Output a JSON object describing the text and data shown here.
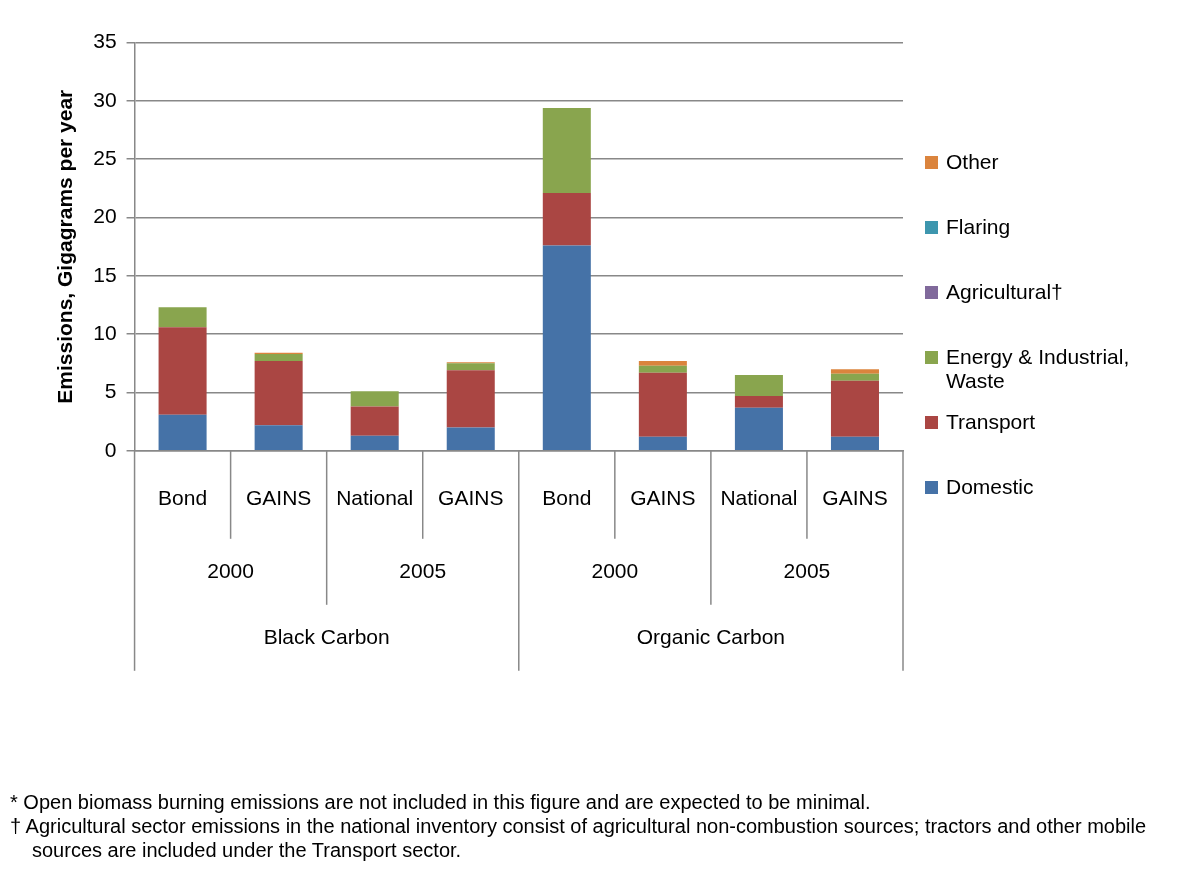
{
  "chart_data": {
    "type": "bar",
    "stacked": true,
    "ylabel": "Emissions, Gigagrams per year",
    "categories": [
      "Bond",
      "GAINS",
      "National",
      "GAINS",
      "Bond",
      "GAINS",
      "National",
      "GAINS"
    ],
    "series": [
      {
        "name": "Domestic",
        "color": "#4572a7",
        "values": [
          3.1,
          2.2,
          1.3,
          2.0,
          17.6,
          1.2,
          3.7,
          1.2
        ]
      },
      {
        "name": "Transport",
        "color": "#aa4643",
        "values": [
          7.5,
          5.5,
          2.5,
          4.9,
          4.5,
          5.5,
          1.0,
          4.8
        ]
      },
      {
        "name": "Energy & Industrial, Waste",
        "color": "#89a54e",
        "values": [
          1.7,
          0.6,
          1.3,
          0.6,
          7.3,
          0.6,
          1.8,
          0.6
        ]
      },
      {
        "name": "Agricultural†",
        "color": "#80699b",
        "values": [
          0,
          0,
          0,
          0,
          0,
          0,
          0,
          0
        ]
      },
      {
        "name": "Flaring",
        "color": "#3d96ae",
        "values": [
          0,
          0,
          0,
          0,
          0,
          0,
          0,
          0
        ]
      },
      {
        "name": "Other",
        "color": "#db843d",
        "values": [
          0,
          0.1,
          0,
          0.1,
          0,
          0.4,
          0,
          0.4
        ]
      }
    ],
    "ylim": [
      0,
      35
    ],
    "yticks": [
      0,
      5,
      10,
      15,
      20,
      25,
      30,
      35
    ],
    "grid": "y",
    "legend": "right",
    "annotations": [
      "2000",
      "2005",
      "2000",
      "2005",
      "Black Carbon",
      "Organic Carbon",
      "*  Open biomass burning emissions are not included in this figure and are expected to be minimal.",
      "†  Agricultural sector emissions in the national inventory consist of agricultural non-combustion sources; tractors and other mobile sources are included under the Transport sector."
    ]
  }
}
